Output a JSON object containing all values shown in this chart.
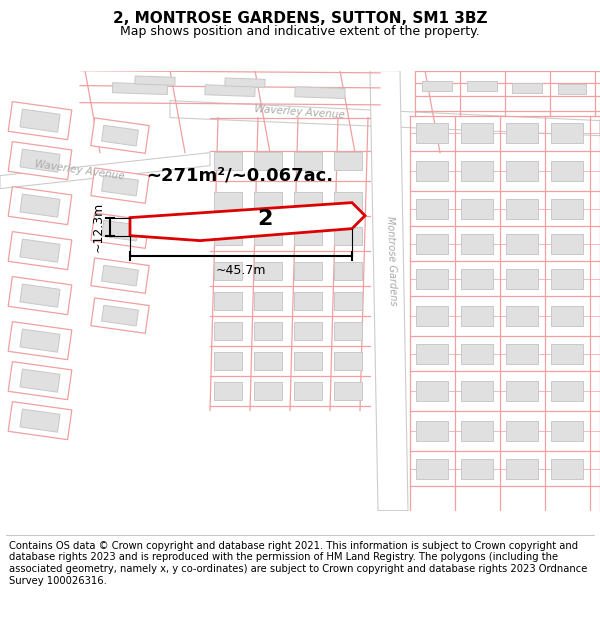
{
  "title": "2, MONTROSE GARDENS, SUTTON, SM1 3BZ",
  "subtitle": "Map shows position and indicative extent of the property.",
  "footer": "Contains OS data © Crown copyright and database right 2021. This information is subject to Crown copyright and database rights 2023 and is reproduced with the permission of HM Land Registry. The polygons (including the associated geometry, namely x, y co-ordinates) are subject to Crown copyright and database rights 2023 Ordnance Survey 100026316.",
  "area_label": "~271m²/~0.067ac.",
  "width_label": "~45.7m",
  "height_label": "~12.3m",
  "property_number": "2",
  "map_bg": "#ffffff",
  "plot_line_color": "#f0a0a0",
  "road_label_color": "#aaaaaa",
  "building_fill": "#e0e0e0",
  "building_stroke": "#c8c8c8",
  "road_fill": "#ffffff",
  "road_edge_color": "#cccccc",
  "prop_outline": "#dd0000",
  "prop_fill": "#ffffff",
  "title_fontsize": 11,
  "subtitle_fontsize": 9,
  "footer_fontsize": 7.2,
  "annot_fontsize": 9,
  "area_fontsize": 13,
  "num_fontsize": 16
}
